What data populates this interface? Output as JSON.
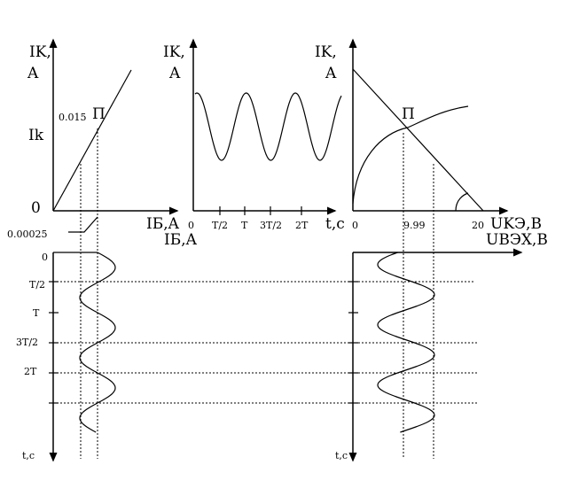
{
  "left_plot": {
    "y_label_1": "IK,",
    "y_label_2": "A",
    "point_value": "0.015",
    "point_label": "Π",
    "ik_label": "Ik",
    "origin": "0",
    "x_label": "IБ,A",
    "base_value": "0.00025"
  },
  "middle_plot": {
    "y_label_1": "IK,",
    "y_label_2": "A",
    "x_ticks": [
      "0",
      "T/2",
      "T",
      "3T/2",
      "2T"
    ],
    "x_label": "t,c"
  },
  "right_plot": {
    "y_label_1": "IK,",
    "y_label_2": "A",
    "point_label": "Π",
    "x_ticks": [
      "0",
      "9.99",
      "20"
    ],
    "x_label": "UKЭ,B"
  },
  "bottom_left": {
    "x_label": "IБ,A",
    "y_ticks": [
      "0",
      "T/2",
      "T",
      "3T/2",
      "2T"
    ],
    "y_label": "t,c"
  },
  "bottom_right": {
    "x_label": "UВЭХ,B",
    "y_label": "t,c"
  }
}
